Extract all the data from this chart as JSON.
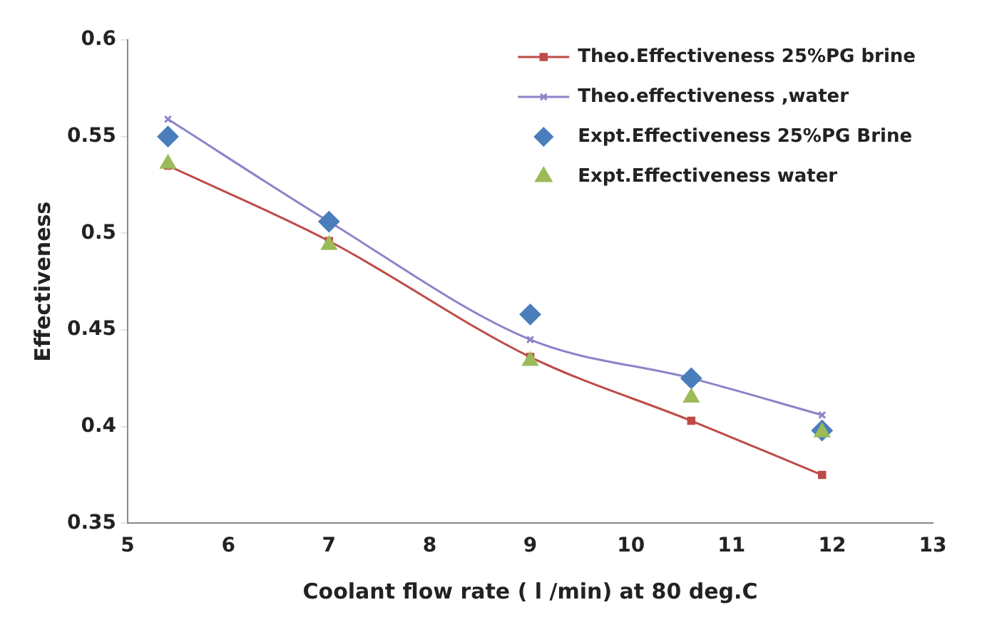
{
  "chart_data": {
    "type": "line",
    "xlabel": "Coolant flow rate ( l /min) at 80 deg.C",
    "ylabel": "Effectiveness",
    "x": [
      5.4,
      7,
      9,
      10.6,
      11.9
    ],
    "series": [
      {
        "name": "Theo.Effectiveness 25%PG brine",
        "color": "#be4b48",
        "marker": "square",
        "values": [
          0.535,
          0.496,
          0.436,
          0.403,
          0.375
        ]
      },
      {
        "name": "Theo.effectiveness ,water",
        "color": "#8b84c8",
        "marker": "cross",
        "values": [
          0.559,
          0.506,
          0.445,
          0.425,
          0.406
        ]
      },
      {
        "name": "Expt.Effectiveness 25%PG Brine",
        "type": "scatter",
        "color": "#4a7ebb",
        "marker": "diamond",
        "values": [
          0.55,
          0.506,
          0.458,
          0.425,
          0.398
        ]
      },
      {
        "name": "Expt.Effectiveness water",
        "type": "scatter",
        "color": "#9bbb59",
        "marker": "triangle",
        "values": [
          0.536,
          0.494,
          0.434,
          0.415,
          0.397
        ]
      }
    ],
    "xlim": [
      5,
      13
    ],
    "xticks": [
      5,
      6,
      7,
      8,
      9,
      10,
      11,
      12,
      13
    ],
    "ylim": [
      0.35,
      0.6
    ],
    "yticks": [
      0.35,
      0.4,
      0.45,
      0.5,
      0.55,
      0.6
    ],
    "grid": false,
    "legend": "top right"
  }
}
